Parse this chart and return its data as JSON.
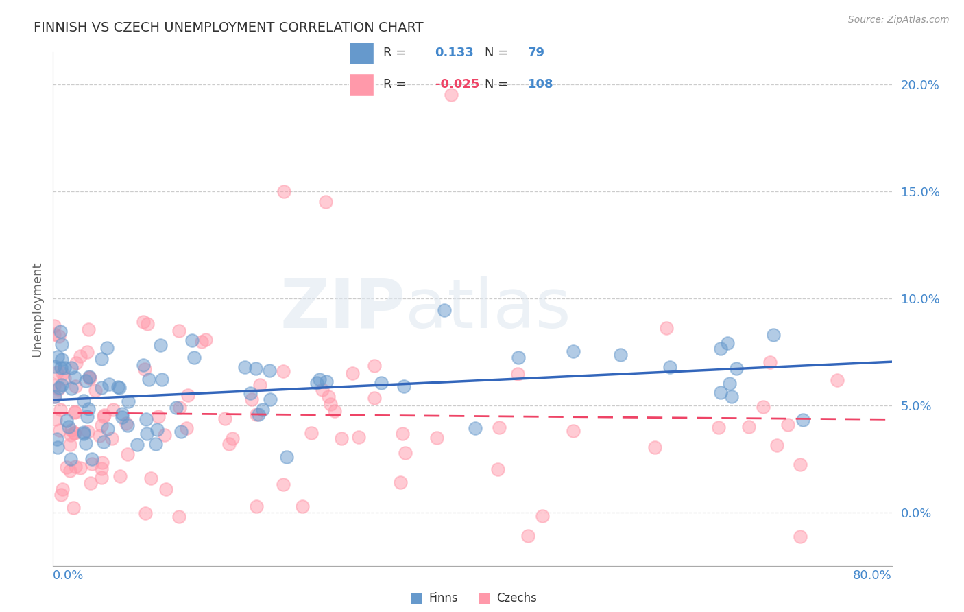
{
  "title": "FINNISH VS CZECH UNEMPLOYMENT CORRELATION CHART",
  "source": "Source: ZipAtlas.com",
  "ylabel": "Unemployment",
  "xlim": [
    0,
    80
  ],
  "ylim": [
    -2.5,
    21.5
  ],
  "yticks": [
    0,
    5,
    10,
    15,
    20
  ],
  "ytick_labels": [
    "0.0%",
    "5.0%",
    "10.0%",
    "15.0%",
    "20.0%"
  ],
  "legend_finn_r": "0.133",
  "legend_finn_n": "79",
  "legend_czech_r": "-0.025",
  "legend_czech_n": "108",
  "finn_color": "#6699cc",
  "czech_color": "#ff99aa",
  "finn_line_color": "#3366bb",
  "czech_line_color": "#ee4466",
  "watermark_zip": "ZIP",
  "watermark_atlas": "atlas",
  "background_color": "#ffffff",
  "grid_color": "#cccccc",
  "title_color": "#333333",
  "axis_color": "#4488cc",
  "bottom_legend_finn": "Finns",
  "bottom_legend_czech": "Czechs"
}
